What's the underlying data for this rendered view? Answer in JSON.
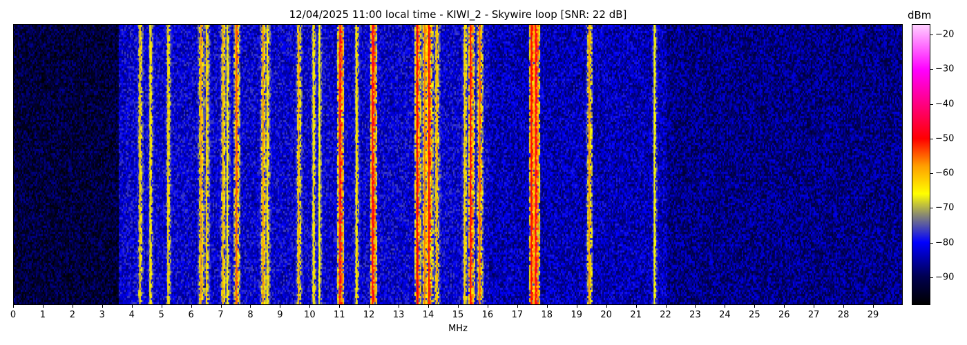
{
  "chart_data": {
    "type": "heatmap",
    "title": "12/04/2025 11:00 local time - KIWI_2 - Skywire loop [SNR: 22 dB]",
    "xlabel": "MHz",
    "xlim": [
      0,
      30
    ],
    "xticks": [
      0,
      1,
      2,
      3,
      4,
      5,
      6,
      7,
      8,
      9,
      10,
      11,
      12,
      13,
      14,
      15,
      16,
      17,
      18,
      19,
      20,
      21,
      22,
      23,
      24,
      25,
      26,
      27,
      28,
      29
    ],
    "colorbar": {
      "label": "dBm",
      "range": [
        -98,
        -17
      ],
      "ticks": [
        -20,
        -30,
        -40,
        -50,
        -60,
        -70,
        -80,
        -90
      ],
      "colormap": [
        {
          "value": -98,
          "color": "#000000"
        },
        {
          "value": -90,
          "color": "#000050"
        },
        {
          "value": -80,
          "color": "#0000ff"
        },
        {
          "value": -72,
          "color": "#8a8a70"
        },
        {
          "value": -66,
          "color": "#ffff00"
        },
        {
          "value": -58,
          "color": "#ffa000"
        },
        {
          "value": -50,
          "color": "#ff0000"
        },
        {
          "value": -40,
          "color": "#ff0080"
        },
        {
          "value": -30,
          "color": "#ff00ff"
        },
        {
          "value": -17,
          "color": "#ffd0ff"
        }
      ]
    },
    "noise_floor": [
      {
        "from": 0,
        "to": 3.5,
        "dbm": -92
      },
      {
        "from": 3.5,
        "to": 16,
        "dbm": -82
      },
      {
        "from": 16,
        "to": 22,
        "dbm": -84
      },
      {
        "from": 22,
        "to": 30,
        "dbm": -87
      }
    ],
    "signals": [
      {
        "mhz": 4.25,
        "dbm": -62
      },
      {
        "mhz": 4.6,
        "dbm": -64
      },
      {
        "mhz": 5.2,
        "dbm": -63
      },
      {
        "mhz": 6.3,
        "dbm": -58
      },
      {
        "mhz": 6.5,
        "dbm": -62
      },
      {
        "mhz": 7.05,
        "dbm": -60
      },
      {
        "mhz": 7.2,
        "dbm": -65
      },
      {
        "mhz": 7.5,
        "dbm": -55
      },
      {
        "mhz": 8.4,
        "dbm": -58
      },
      {
        "mhz": 8.55,
        "dbm": -64
      },
      {
        "mhz": 9.6,
        "dbm": -60
      },
      {
        "mhz": 10.1,
        "dbm": -64
      },
      {
        "mhz": 10.3,
        "dbm": -66
      },
      {
        "mhz": 11.0,
        "dbm": -48
      },
      {
        "mhz": 11.55,
        "dbm": -64
      },
      {
        "mhz": 12.1,
        "dbm": -48
      },
      {
        "mhz": 13.6,
        "dbm": -50
      },
      {
        "mhz": 13.85,
        "dbm": -56
      },
      {
        "mhz": 14.0,
        "dbm": -50
      },
      {
        "mhz": 14.25,
        "dbm": -60
      },
      {
        "mhz": 15.2,
        "dbm": -62
      },
      {
        "mhz": 15.4,
        "dbm": -50
      },
      {
        "mhz": 15.7,
        "dbm": -55
      },
      {
        "mhz": 17.45,
        "dbm": -50
      },
      {
        "mhz": 17.6,
        "dbm": -48
      },
      {
        "mhz": 19.4,
        "dbm": -58
      },
      {
        "mhz": 21.6,
        "dbm": -66
      }
    ]
  }
}
